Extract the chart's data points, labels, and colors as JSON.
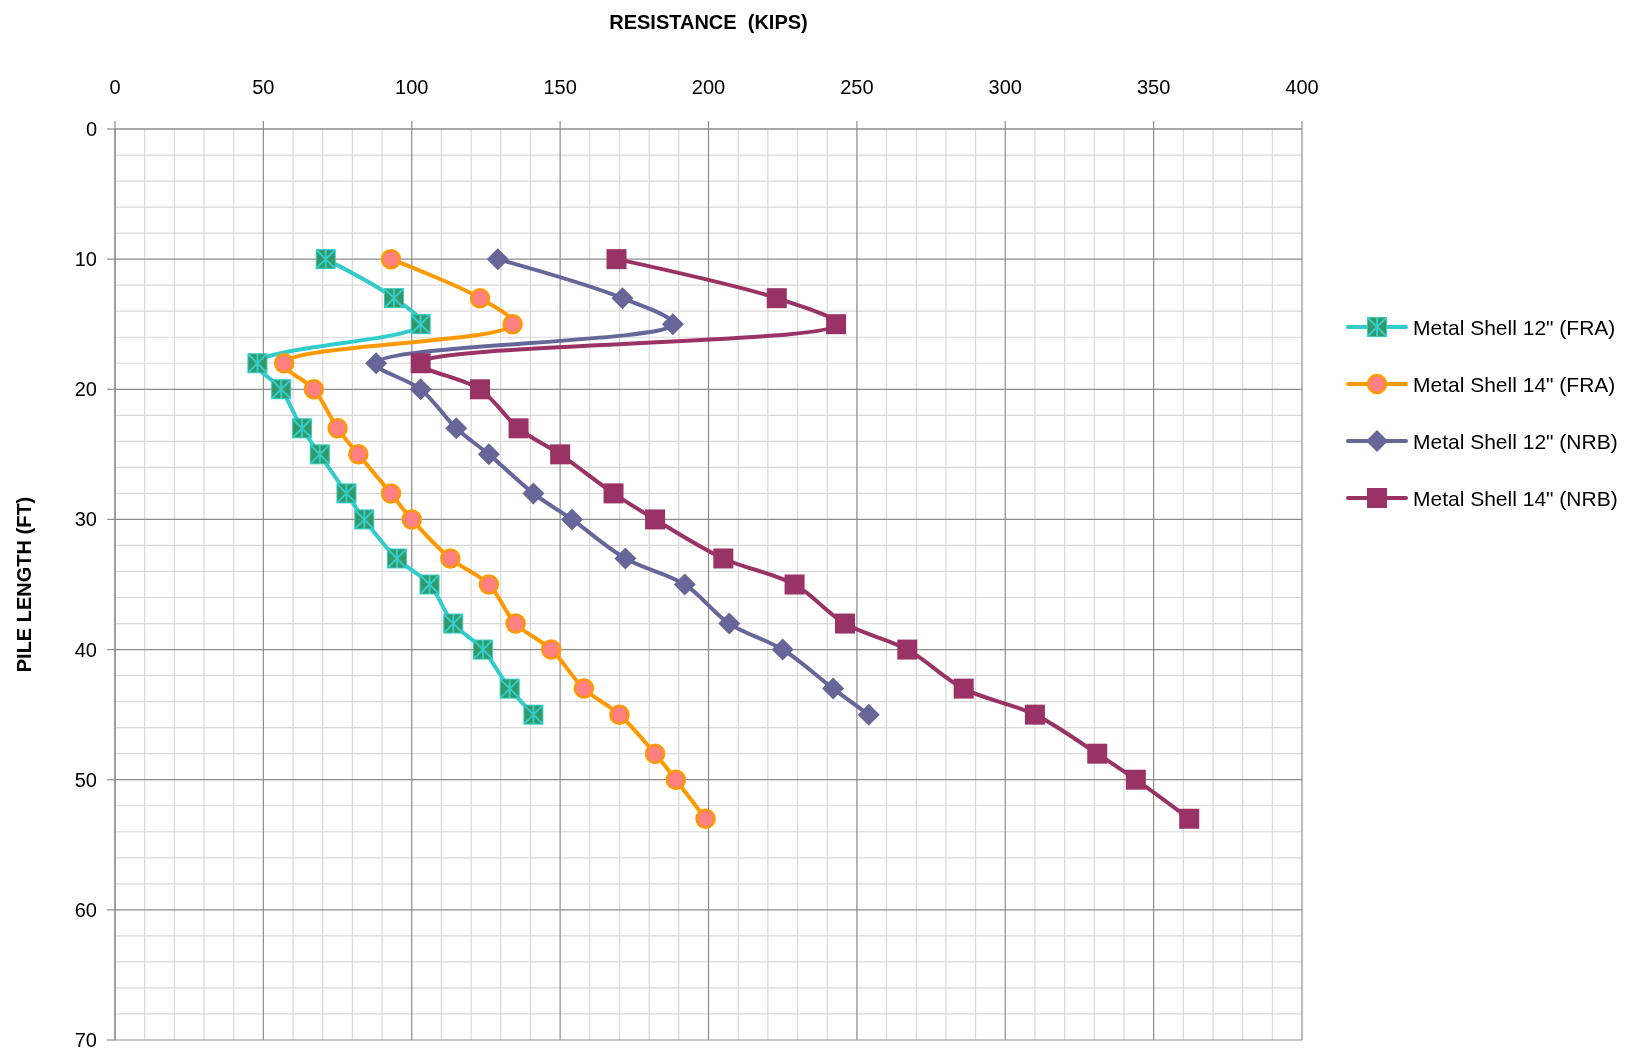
{
  "chart_data": {
    "type": "line",
    "xlabel": "RESISTANCE  (KIPS)",
    "ylabel": "PILE LENGTH (FT)",
    "xlim": [
      0,
      400
    ],
    "xticks": [
      0,
      {
        "value": 10,
        "label": null
      },
      {
        "value": 20,
        "label": null
      },
      {
        "value": 30,
        "label": null
      },
      {
        "value": 40,
        "label": null
      },
      50,
      {
        "value": 60,
        "label": null
      },
      {
        "value": 70,
        "label": null
      },
      {
        "value": 80,
        "label": null
      },
      {
        "value": 90,
        "label": null
      },
      100,
      {
        "value": 110,
        "label": null
      },
      {
        "value": 120,
        "label": null
      },
      {
        "value": 130,
        "label": null
      },
      {
        "value": 140,
        "label": null
      },
      150,
      {
        "value": 160,
        "label": null
      },
      {
        "value": 170,
        "label": null
      },
      {
        "value": 180,
        "label": null
      },
      {
        "value": 190,
        "label": null
      },
      200,
      {
        "value": 210,
        "label": null
      },
      {
        "value": 220,
        "label": null
      },
      {
        "value": 230,
        "label": null
      },
      {
        "value": 240,
        "label": null
      },
      250,
      {
        "value": 260,
        "label": null
      },
      {
        "value": 270,
        "label": null
      },
      {
        "value": 280,
        "label": null
      },
      {
        "value": 290,
        "label": null
      },
      300,
      {
        "value": 310,
        "label": null
      },
      {
        "value": 320,
        "label": null
      },
      {
        "value": 330,
        "label": null
      },
      {
        "value": 340,
        "label": null
      },
      350,
      {
        "value": 360,
        "label": null
      },
      {
        "value": 370,
        "label": null
      },
      {
        "value": 380,
        "label": null
      },
      {
        "value": 390,
        "label": null
      },
      400
    ],
    "ylim": [
      70,
      0
    ],
    "yticks": [
      0,
      {
        "value": 2,
        "label": null
      },
      {
        "value": 4,
        "label": null
      },
      {
        "value": 6,
        "label": null
      },
      {
        "value": 8,
        "label": null
      },
      10,
      {
        "value": 12,
        "label": null
      },
      {
        "value": 14,
        "label": null
      },
      {
        "value": 16,
        "label": null
      },
      {
        "value": 18,
        "label": null
      },
      20,
      {
        "value": 22,
        "label": null
      },
      {
        "value": 24,
        "label": null
      },
      {
        "value": 26,
        "label": null
      },
      {
        "value": 28,
        "label": null
      },
      30,
      {
        "value": 32,
        "label": null
      },
      {
        "value": 34,
        "label": null
      },
      {
        "value": 36,
        "label": null
      },
      {
        "value": 38,
        "label": null
      },
      40,
      {
        "value": 42,
        "label": null
      },
      {
        "value": 44,
        "label": null
      },
      {
        "value": 46,
        "label": null
      },
      {
        "value": 48,
        "label": null
      },
      50,
      {
        "value": 52,
        "label": null
      },
      {
        "value": 54,
        "label": null
      },
      {
        "value": 56,
        "label": null
      },
      {
        "value": 58,
        "label": null
      },
      60,
      {
        "value": 62,
        "label": null
      },
      {
        "value": 64,
        "label": null
      },
      {
        "value": 66,
        "label": null
      },
      {
        "value": 68,
        "label": null
      },
      70
    ],
    "grid": true,
    "legend": "right",
    "line_style": "solid",
    "series": [
      {
        "name": "Metal Shell 12\" (FRA)",
        "color": "#33cccc",
        "marker": "square",
        "colors": [
          "#339966",
          "#339966",
          "#339966",
          "#339966",
          "#339966",
          "#339966",
          "#339966",
          "#339966",
          "#339966",
          "#339966",
          "#339966",
          "#339966",
          "#339966",
          "#339966",
          "#339966"
        ],
        "x": [
          71,
          94,
          103,
          48,
          56,
          63,
          69,
          78,
          84,
          95,
          106,
          114,
          124,
          133,
          141
        ],
        "values": [
          10,
          13,
          15,
          18,
          20,
          23,
          25,
          28,
          30,
          33,
          35,
          38,
          40,
          43,
          45
        ]
      },
      {
        "name": "Metal Shell 14\" (FRA)",
        "color": "#ff9900",
        "marker": "circle",
        "colors": [
          "#ff8080",
          "#ff8080",
          "#ff8080",
          "#ff8080",
          "#ff8080",
          "#ff8080",
          "#ff8080",
          "#ff8080",
          "#ff8080",
          "#ff8080",
          "#ff8080",
          "#ff8080",
          "#ff8080",
          "#ff8080",
          "#ff8080",
          "#ff8080",
          "#ff8080",
          "#ff8080"
        ],
        "x": [
          93,
          123,
          134,
          57,
          67,
          75,
          82,
          93,
          100,
          113,
          126,
          135,
          147,
          158,
          170,
          182,
          189,
          199
        ],
        "values": [
          10,
          13,
          15,
          18,
          20,
          23,
          25,
          28,
          30,
          33,
          35,
          38,
          40,
          43,
          45,
          48,
          50,
          53
        ]
      },
      {
        "name": "Metal Shell 12\" (NRB)",
        "color": "#666699",
        "marker": "diamond",
        "x": [
          129,
          171,
          188,
          88,
          103,
          115,
          126,
          141,
          154,
          172,
          192,
          207,
          225,
          242,
          254
        ],
        "values": [
          10,
          13,
          15,
          18,
          20,
          23,
          25,
          28,
          30,
          33,
          35,
          38,
          40,
          43,
          45
        ]
      },
      {
        "name": "Metal Shell 14\" (NRB)",
        "color": "#993366",
        "marker": "square",
        "x": [
          169,
          223,
          243,
          103,
          123,
          136,
          150,
          168,
          182,
          205,
          229,
          246,
          267,
          286,
          310,
          331,
          344,
          362
        ],
        "values": [
          10,
          13,
          15,
          18,
          20,
          23,
          25,
          28,
          30,
          33,
          35,
          38,
          40,
          43,
          45,
          48,
          50,
          53
        ]
      }
    ]
  }
}
